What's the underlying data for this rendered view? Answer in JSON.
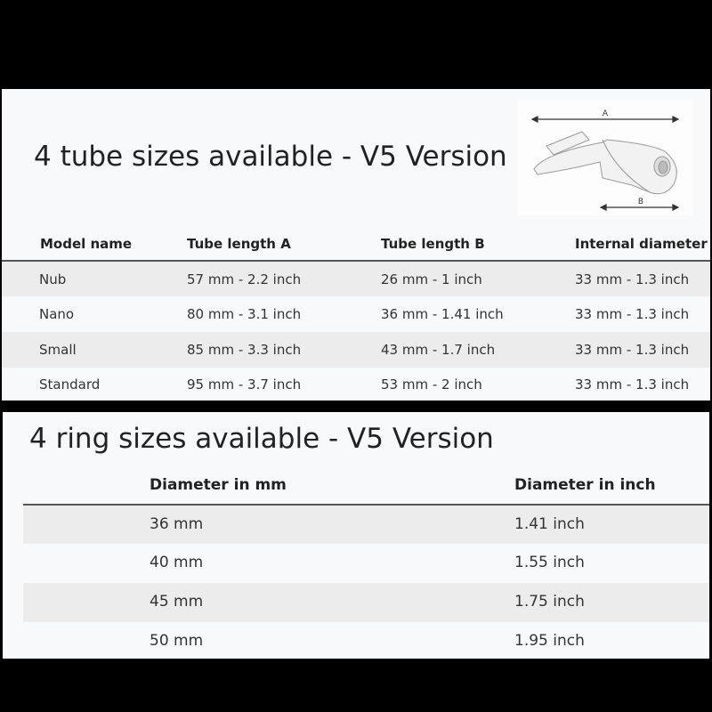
{
  "tube_table": {
    "title": "4 tube sizes available - V5 Version",
    "diagram": {
      "label_a": "A",
      "label_b": "B"
    },
    "headers": [
      "Model name",
      "Tube length A",
      "Tube length B",
      "Internal diameter"
    ],
    "rows": [
      [
        "Nub",
        "57 mm - 2.2 inch",
        "26 mm - 1 inch",
        "33 mm - 1.3 inch"
      ],
      [
        "Nano",
        "80 mm - 3.1 inch",
        "36 mm - 1.41 inch",
        "33 mm - 1.3 inch"
      ],
      [
        "Small",
        "85 mm - 3.3 inch",
        "43 mm - 1.7 inch",
        "33 mm - 1.3 inch"
      ],
      [
        "Standard",
        "95 mm - 3.7 inch",
        "53 mm - 2 inch",
        "33 mm - 1.3 inch"
      ]
    ]
  },
  "ring_table": {
    "title": "4 ring sizes available - V5 Version",
    "headers": [
      "Diameter in mm",
      "Diameter in inch"
    ],
    "rows": [
      [
        "36 mm",
        "1.41 inch"
      ],
      [
        "40 mm",
        "1.55 inch"
      ],
      [
        "45 mm",
        "1.75 inch"
      ],
      [
        "50 mm",
        "1.95 inch"
      ]
    ]
  }
}
